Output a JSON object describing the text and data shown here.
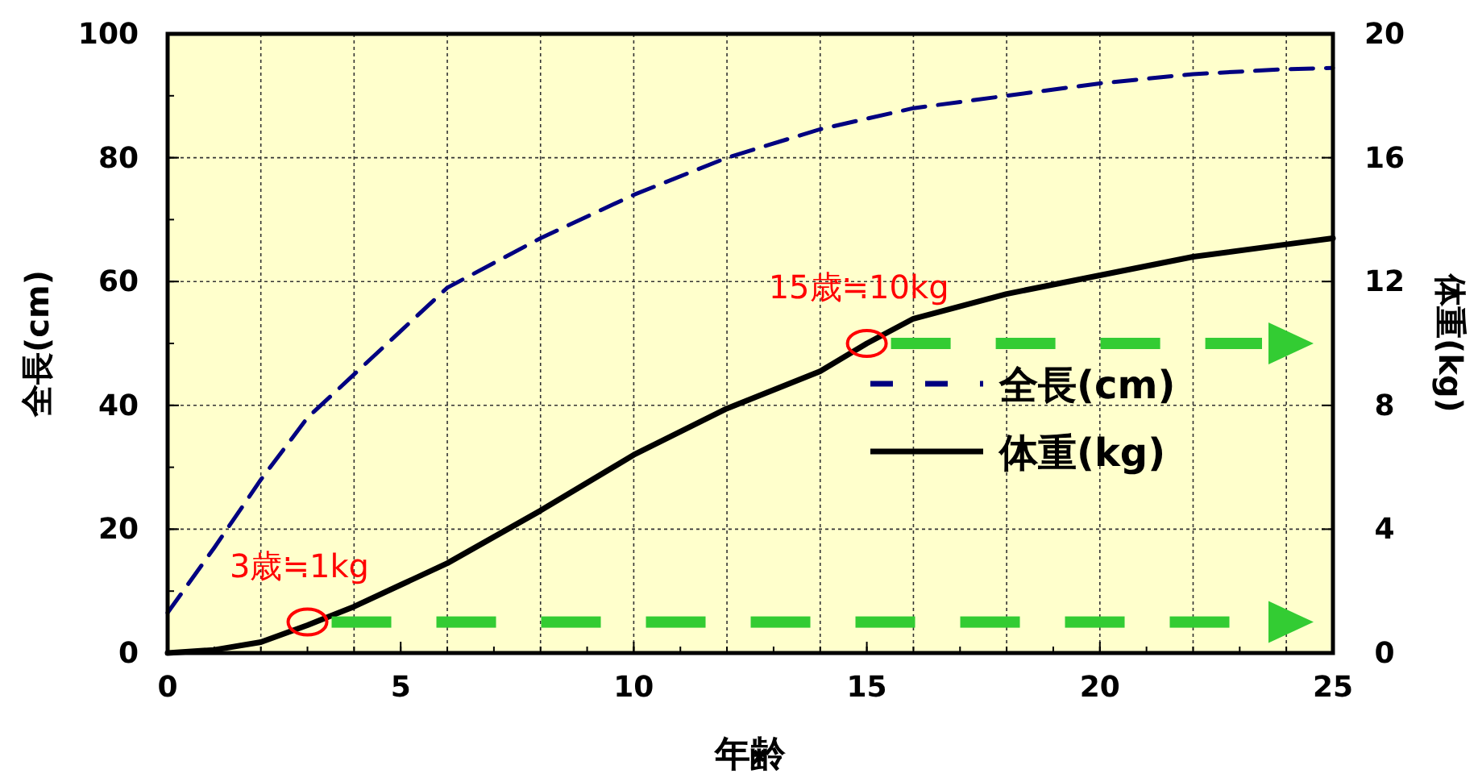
{
  "chart_data": {
    "type": "line",
    "xlabel": "年齢",
    "ylabel": "全長(cm)",
    "y2label": "体重(kg)",
    "xlim": [
      0,
      25
    ],
    "xticks": [
      0,
      5,
      10,
      15,
      20,
      25
    ],
    "ylim": [
      0,
      100
    ],
    "yticks": [
      0,
      20,
      40,
      60,
      80,
      100
    ],
    "y2lim": [
      0,
      20
    ],
    "y2ticks": [
      0,
      4,
      8,
      12,
      16,
      20
    ],
    "grid": true,
    "legend": "right",
    "marker": "none",
    "series": [
      {
        "name": "全長(cm)",
        "color": "#000080",
        "line_style": "dashed",
        "x": [
          0,
          1,
          2,
          3,
          4,
          5,
          6,
          8,
          10,
          12,
          14,
          16,
          18,
          20,
          22,
          24,
          25
        ],
        "values": [
          6.5,
          17,
          28,
          38,
          45,
          52,
          59,
          67,
          74,
          80,
          84.6,
          88,
          90,
          92,
          93.5,
          94.3,
          94.5
        ]
      },
      {
        "name": "体重(kg)",
        "color": "#000000",
        "line_style": "solid",
        "axis": "y2",
        "x": [
          0,
          1,
          2,
          3,
          4,
          5,
          6,
          8,
          10,
          12,
          14,
          15,
          16,
          18,
          20,
          22,
          24,
          25
        ],
        "values": [
          0,
          0.1,
          0.35,
          0.9,
          1.5,
          2.2,
          2.9,
          4.6,
          6.4,
          7.9,
          9.1,
          10,
          10.8,
          11.6,
          12.2,
          12.8,
          13.2,
          13.4
        ]
      }
    ],
    "annotations": [
      {
        "text": "3歳≒1kg",
        "x": 3,
        "y": 5
      },
      {
        "text": "15歳≒10kg",
        "x": 15,
        "y": 50
      }
    ]
  }
}
